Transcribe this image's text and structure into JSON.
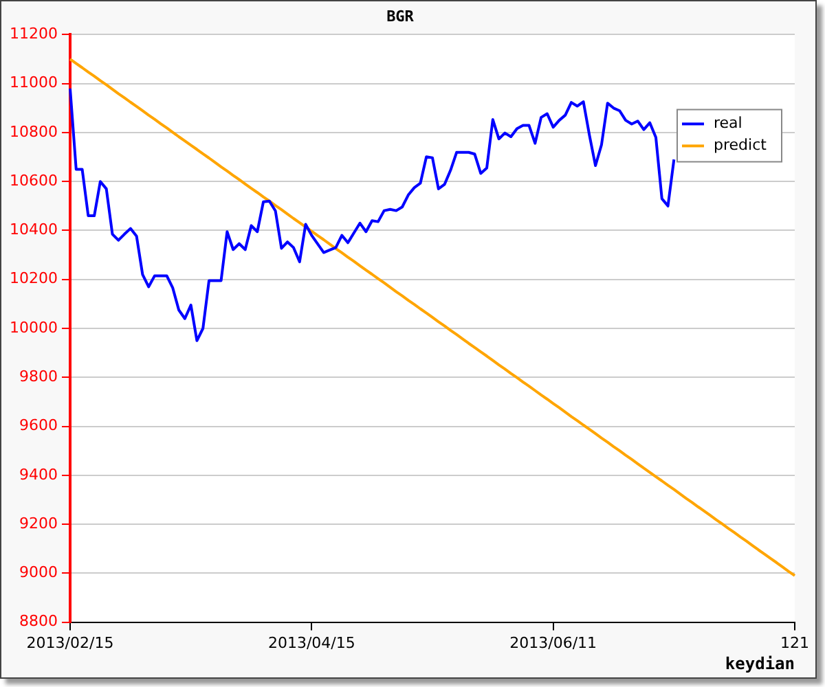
{
  "chart_data": {
    "type": "line",
    "title": "BGR",
    "xlabel": "keydian",
    "categories": [
      "2013/02/15",
      null,
      null,
      null,
      null,
      null,
      null,
      null,
      null,
      null,
      null,
      null,
      null,
      null,
      null,
      null,
      null,
      null,
      null,
      null,
      null,
      null,
      null,
      null,
      null,
      null,
      null,
      null,
      null,
      null,
      null,
      null,
      null,
      null,
      null,
      null,
      null,
      null,
      null,
      null,
      "2013/04/15",
      null,
      null,
      null,
      null,
      null,
      null,
      null,
      null,
      null,
      null,
      null,
      null,
      null,
      null,
      null,
      null,
      null,
      null,
      null,
      null,
      null,
      null,
      null,
      null,
      null,
      null,
      null,
      null,
      null,
      null,
      null,
      null,
      null,
      null,
      null,
      null,
      null,
      null,
      null,
      "2013/06/11",
      null,
      null,
      null,
      null,
      null,
      null,
      null,
      null,
      null,
      null,
      null,
      null,
      null,
      null,
      null,
      null,
      null,
      null,
      null,
      null,
      null,
      null,
      null,
      null,
      null,
      null,
      null,
      null,
      null,
      null,
      null,
      null,
      null,
      null,
      null,
      null,
      null,
      null,
      null,
      "121"
    ],
    "ylim": [
      8800,
      11200
    ],
    "yticks": [
      8800,
      9000,
      9200,
      9400,
      9600,
      9800,
      10000,
      10200,
      10400,
      10600,
      10800,
      11000,
      11200
    ],
    "grid": "y",
    "legend": "top right",
    "marker": "none",
    "line_style": "solid",
    "series": [
      {
        "name": "real",
        "color": "#0000ff",
        "values": [
          10980,
          10650,
          10650,
          10460,
          10460,
          10600,
          10570,
          10385,
          10360,
          10385,
          10408,
          10377,
          10220,
          10170,
          10215,
          10215,
          10215,
          10165,
          10075,
          10040,
          10095,
          9950,
          10000,
          10195,
          10195,
          10195,
          10395,
          10322,
          10346,
          10322,
          10420,
          10395,
          10517,
          10520,
          10480,
          10327,
          10353,
          10330,
          10272,
          10425,
          10380,
          10345,
          10310,
          10320,
          10330,
          10380,
          10350,
          10390,
          10430,
          10395,
          10440,
          10436,
          10481,
          10486,
          10481,
          10496,
          10545,
          10575,
          10593,
          10701,
          10697,
          10570,
          10588,
          10646,
          10719,
          10719,
          10719,
          10712,
          10633,
          10655,
          10853,
          10774,
          10798,
          10783,
          10816,
          10829,
          10829,
          10756,
          10862,
          10877,
          10822,
          10850,
          10871,
          10923,
          10908,
          10926,
          10789,
          10665,
          10750,
          10920,
          10900,
          10889,
          10850,
          10835,
          10847,
          10812,
          10840,
          10780,
          10530,
          10500,
          10690,
          null,
          null,
          null,
          null,
          null,
          null,
          null,
          null,
          null,
          null,
          null,
          null,
          null,
          null,
          null,
          null,
          null,
          null,
          null,
          null
        ]
      },
      {
        "name": "predict",
        "color": "#ffa500",
        "values": [
          11100,
          11082,
          11065,
          11047,
          11030,
          11012,
          10995,
          10977,
          10959,
          10942,
          10924,
          10907,
          10889,
          10871,
          10854,
          10836,
          10819,
          10801,
          10783,
          10766,
          10748,
          10731,
          10713,
          10696,
          10678,
          10660,
          10643,
          10625,
          10608,
          10590,
          10572,
          10555,
          10537,
          10520,
          10502,
          10485,
          10467,
          10449,
          10432,
          10414,
          10397,
          10379,
          10362,
          10344,
          10326,
          10309,
          10291,
          10274,
          10256,
          10238,
          10221,
          10203,
          10186,
          10168,
          10150,
          10133,
          10115,
          10098,
          10080,
          10063,
          10045,
          10027,
          10010,
          9992,
          9975,
          9957,
          9939,
          9922,
          9904,
          9887,
          9869,
          9851,
          9834,
          9816,
          9799,
          9781,
          9764,
          9746,
          9728,
          9711,
          9693,
          9676,
          9658,
          9640,
          9623,
          9605,
          9588,
          9570,
          9552,
          9535,
          9517,
          9500,
          9482,
          9465,
          9447,
          9429,
          9412,
          9394,
          9377,
          9359,
          9342,
          9324,
          9306,
          9289,
          9271,
          9254,
          9236,
          9218,
          9201,
          9183,
          9166,
          9148,
          9131,
          9113,
          9095,
          9078,
          9060,
          9043,
          9025,
          9007,
          8990
        ]
      }
    ]
  }
}
